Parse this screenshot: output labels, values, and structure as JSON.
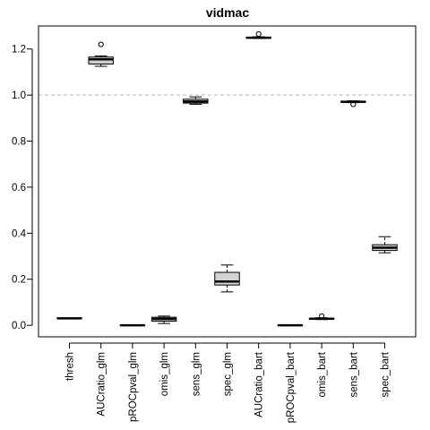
{
  "chart_data": {
    "type": "box",
    "title": "vidmac",
    "xlabel": "",
    "ylabel": "",
    "ylim": [
      -0.05,
      1.3
    ],
    "yticks": [
      0.0,
      0.2,
      0.4,
      0.6,
      0.8,
      1.0,
      1.2
    ],
    "ytick_labels": [
      "0.0",
      "0.2",
      "0.4",
      "0.6",
      "0.8",
      "1.0",
      "1.2"
    ],
    "reference_line": {
      "y": 1.0,
      "style": "dashed",
      "color": "#bbbbbb"
    },
    "box_fill": "#d3d3d3",
    "categories": [
      "thresh",
      "AUCratio_glm",
      "pROCpval_glm",
      "omis_glm",
      "sens_glm",
      "spec_glm",
      "AUCratio_bart",
      "pROCpval_bart",
      "omis_bart",
      "sens_bart",
      "spec_bart"
    ],
    "boxes": [
      {
        "name": "thresh",
        "whisker_low": 0.03,
        "q1": 0.03,
        "median": 0.03,
        "q3": 0.032,
        "whisker_high": 0.032,
        "outliers": []
      },
      {
        "name": "AUCratio_glm",
        "whisker_low": 1.125,
        "q1": 1.135,
        "median": 1.155,
        "q3": 1.165,
        "whisker_high": 1.17,
        "outliers": [
          1.22
        ]
      },
      {
        "name": "pROCpval_glm",
        "whisker_low": 0.0,
        "q1": 0.0,
        "median": 0.0,
        "q3": 0.001,
        "whisker_high": 0.001,
        "outliers": []
      },
      {
        "name": "omis_glm",
        "whisker_low": 0.008,
        "q1": 0.018,
        "median": 0.028,
        "q3": 0.035,
        "whisker_high": 0.04,
        "outliers": []
      },
      {
        "name": "sens_glm",
        "whisker_low": 0.96,
        "q1": 0.965,
        "median": 0.972,
        "q3": 0.982,
        "whisker_high": 0.992,
        "outliers": []
      },
      {
        "name": "spec_glm",
        "whisker_low": 0.145,
        "q1": 0.175,
        "median": 0.19,
        "q3": 0.23,
        "whisker_high": 0.262,
        "outliers": []
      },
      {
        "name": "AUCratio_bart",
        "whisker_low": 1.246,
        "q1": 1.247,
        "median": 1.249,
        "q3": 1.251,
        "whisker_high": 1.253,
        "outliers": [
          1.265
        ]
      },
      {
        "name": "pROCpval_bart",
        "whisker_low": 0.0,
        "q1": 0.0,
        "median": 0.0,
        "q3": 0.001,
        "whisker_high": 0.001,
        "outliers": []
      },
      {
        "name": "omis_bart",
        "whisker_low": 0.025,
        "q1": 0.027,
        "median": 0.029,
        "q3": 0.031,
        "whisker_high": 0.033,
        "outliers": [
          0.04
        ]
      },
      {
        "name": "sens_bart",
        "whisker_low": 0.967,
        "q1": 0.969,
        "median": 0.971,
        "q3": 0.973,
        "whisker_high": 0.975,
        "outliers": [
          0.96
        ]
      },
      {
        "name": "spec_bart",
        "whisker_low": 0.315,
        "q1": 0.325,
        "median": 0.337,
        "q3": 0.35,
        "whisker_high": 0.385,
        "outliers": []
      }
    ]
  }
}
